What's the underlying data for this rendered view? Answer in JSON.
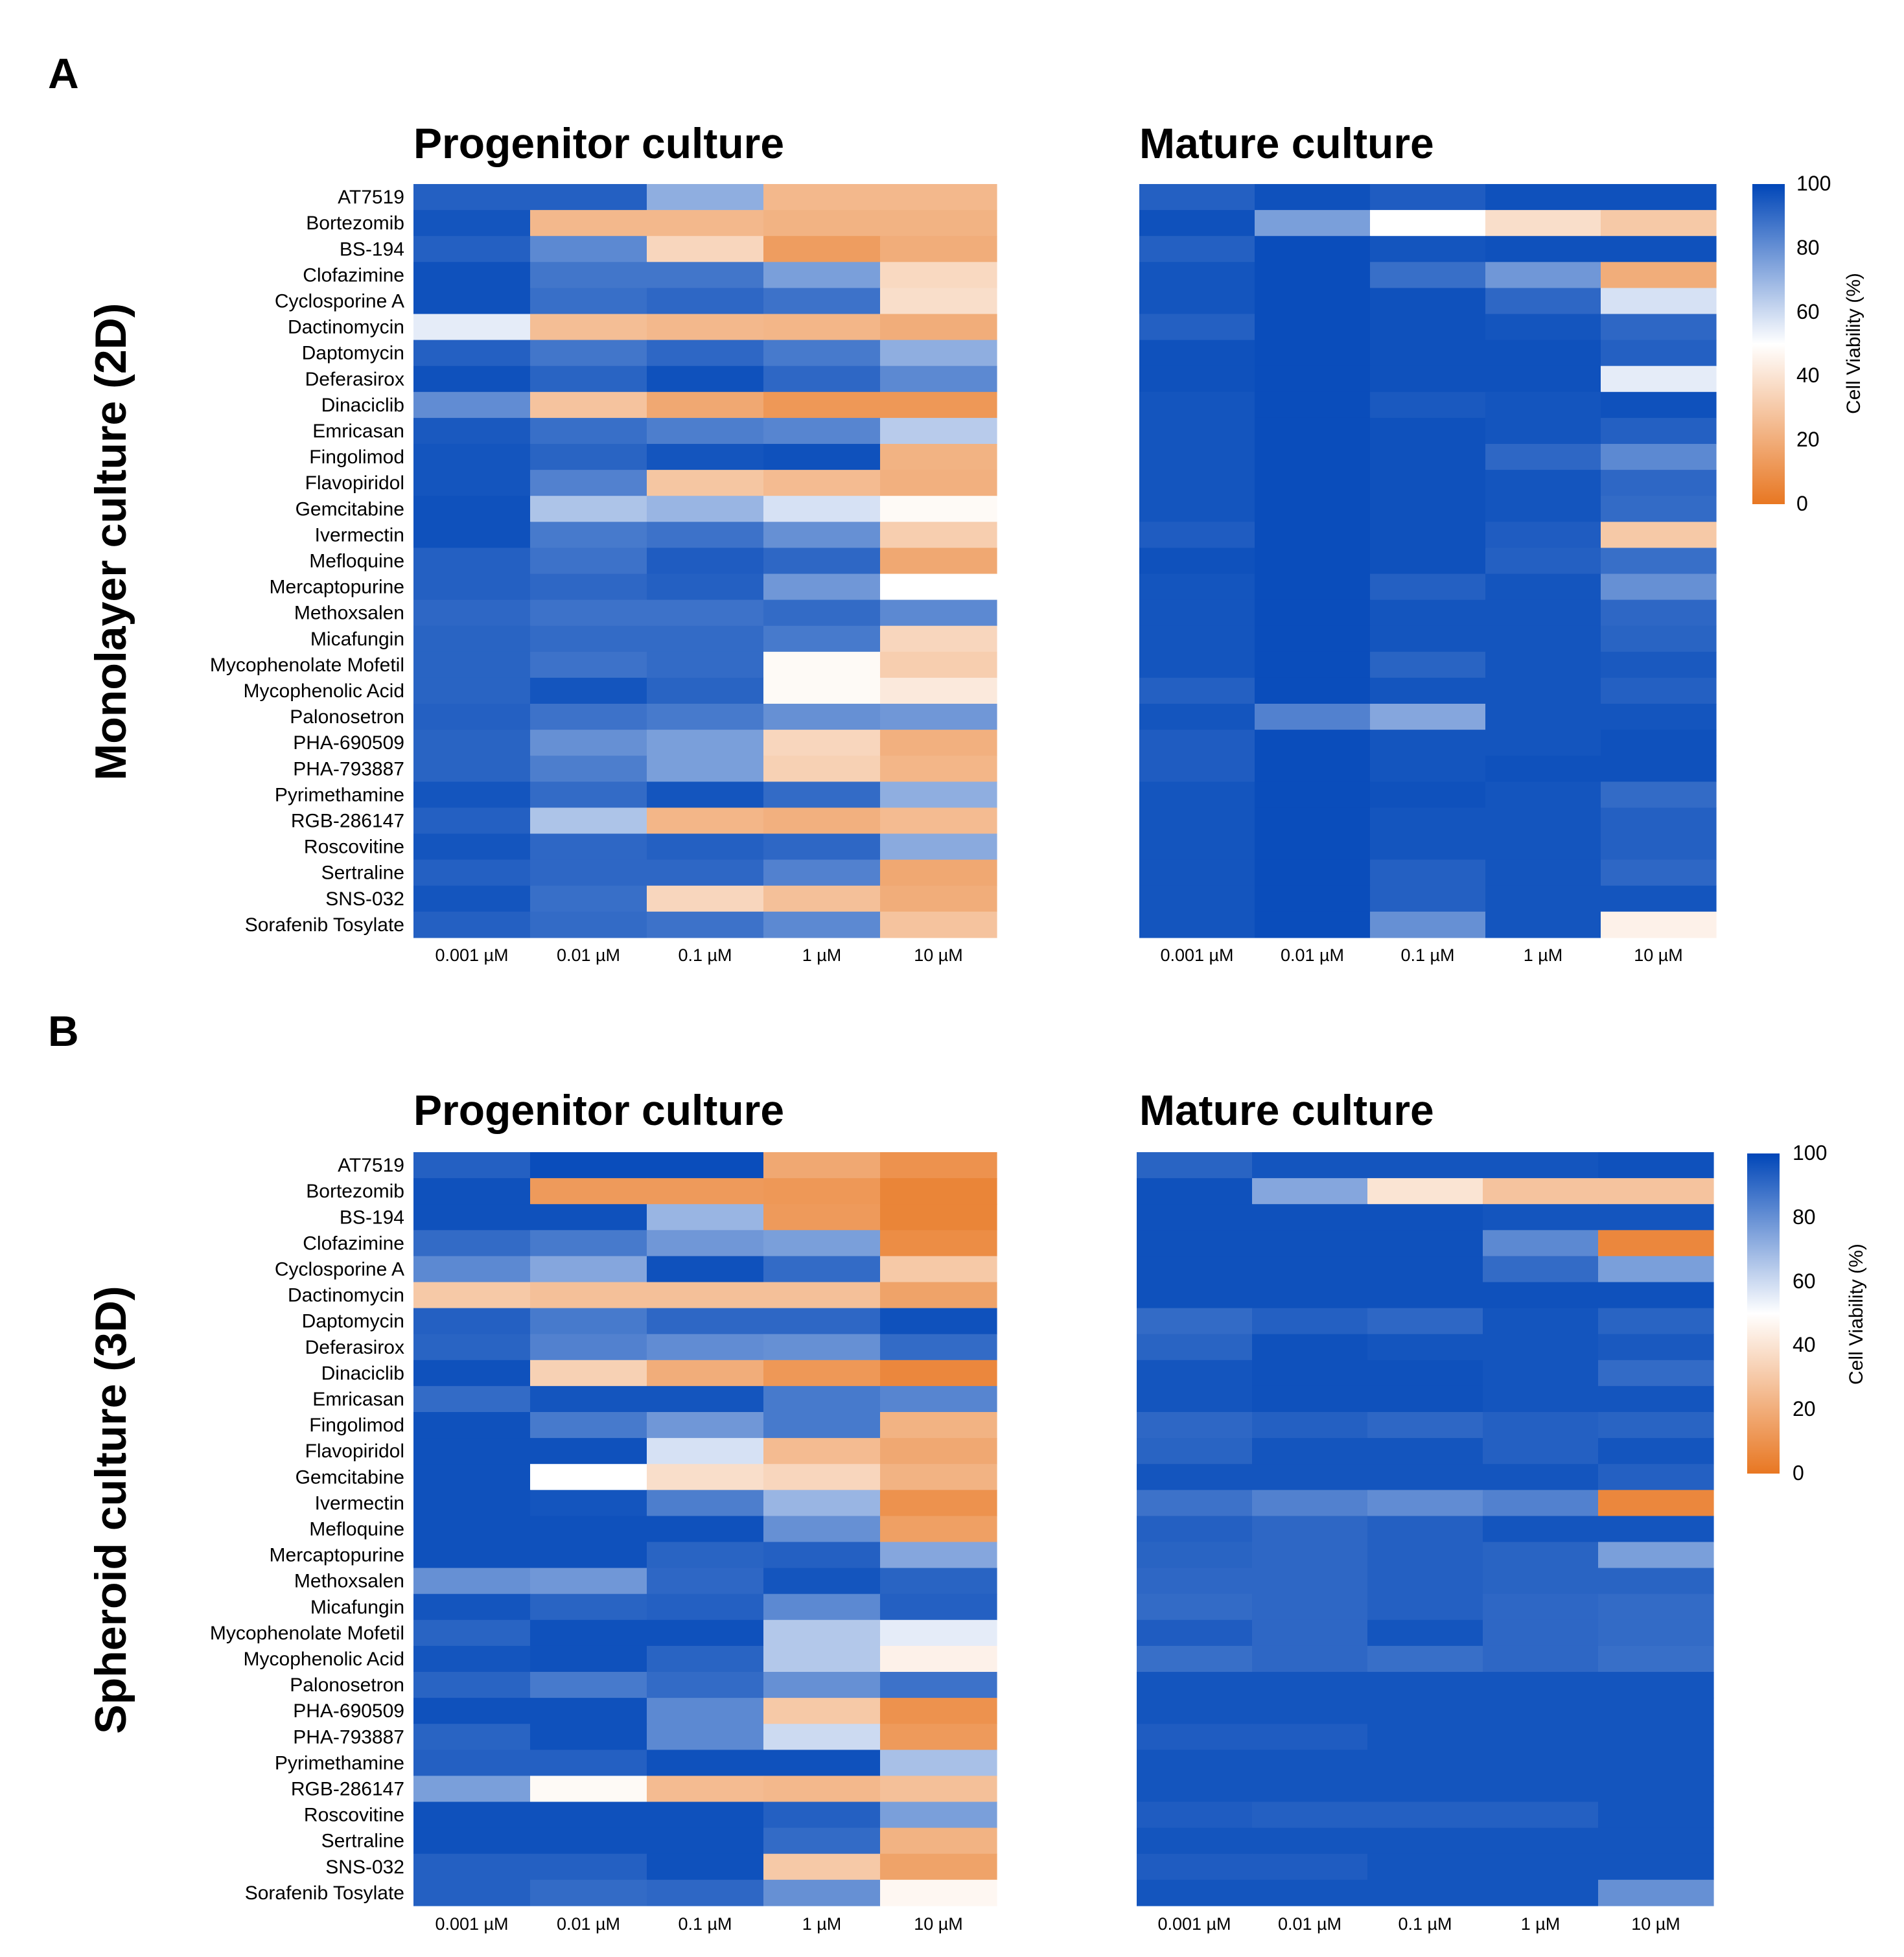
{
  "figure": {
    "panels": [
      {
        "letter": "A",
        "row_title": "Monolayer culture (2D)"
      },
      {
        "letter": "B",
        "row_title": "Spheroid culture (3D)"
      }
    ]
  },
  "chart_data": [
    {
      "type": "heatmap",
      "panel": "A",
      "title": "Progenitor culture",
      "row_title": "Monolayer culture (2D)",
      "colorbar_label": "Cell Viability (%)",
      "colorbar_ticks": [
        100,
        80,
        60,
        40,
        20,
        0
      ],
      "zlim": [
        0,
        100
      ],
      "colormap": {
        "low": "#e87722",
        "mid": "#ffffff",
        "high": "#0046b8"
      },
      "x": [
        "0.001 µM",
        "0.01 µM",
        "0.1 µM",
        "1 µM",
        "10 µM"
      ],
      "y": [
        "AT7519",
        "Bortezomib",
        "BS-194",
        "Clofazimine",
        "Cyclosporine A",
        "Dactinomycin",
        "Daptomycin",
        "Deferasirox",
        "Dinaciclib",
        "Emricasan",
        "Fingolimod",
        "Flavopiridol",
        "Gemcitabine",
        "Ivermectin",
        "Mefloquine",
        "Mercaptopurine",
        "Methoxsalen",
        "Micafungin",
        "Mycophenolate Mofetil",
        "Mycophenolic Acid",
        "Palonosetron",
        "PHA-690509",
        "PHA-793887",
        "Pyrimethamine",
        "RGB-286147",
        "Roscovitine",
        "Sertraline",
        "SNS-032",
        "Sorafenib Tosylate"
      ],
      "values": [
        [
          93,
          93,
          72,
          24,
          24
        ],
        [
          96,
          24,
          24,
          22,
          22
        ],
        [
          93,
          82,
          35,
          14,
          20
        ],
        [
          97,
          87,
          87,
          76,
          36
        ],
        [
          97,
          89,
          91,
          88,
          38
        ],
        [
          55,
          26,
          24,
          23,
          20
        ],
        [
          93,
          87,
          91,
          86,
          72
        ],
        [
          97,
          92,
          97,
          91,
          82
        ],
        [
          81,
          28,
          18,
          12,
          12
        ],
        [
          95,
          89,
          85,
          83,
          64
        ],
        [
          96,
          92,
          96,
          97,
          22
        ],
        [
          96,
          84,
          29,
          25,
          21
        ],
        [
          97,
          66,
          70,
          58,
          48
        ],
        [
          97,
          86,
          88,
          80,
          32
        ],
        [
          93,
          88,
          94,
          91,
          18
        ],
        [
          93,
          91,
          93,
          78,
          50
        ],
        [
          91,
          88,
          88,
          90,
          82
        ],
        [
          92,
          90,
          90,
          86,
          35
        ],
        [
          92,
          88,
          90,
          48,
          32
        ],
        [
          92,
          96,
          92,
          48,
          42
        ],
        [
          93,
          88,
          86,
          80,
          78
        ],
        [
          92,
          80,
          76,
          35,
          21
        ],
        [
          92,
          85,
          76,
          33,
          23
        ],
        [
          96,
          90,
          96,
          90,
          72
        ],
        [
          93,
          66,
          23,
          21,
          25
        ],
        [
          96,
          91,
          93,
          91,
          73
        ],
        [
          93,
          91,
          91,
          84,
          18
        ],
        [
          96,
          89,
          35,
          27,
          20
        ],
        [
          93,
          90,
          88,
          82,
          28
        ]
      ]
    },
    {
      "type": "heatmap",
      "panel": "A",
      "title": "Mature culture",
      "row_title": "Monolayer culture (2D)",
      "colorbar_label": "Cell Viability (%)",
      "colorbar_ticks": [
        100,
        80,
        60,
        40,
        20,
        0
      ],
      "zlim": [
        0,
        100
      ],
      "colormap": {
        "low": "#e87722",
        "mid": "#ffffff",
        "high": "#0046b8"
      },
      "x": [
        "0.001 µM",
        "0.01 µM",
        "0.1 µM",
        "1 µM",
        "10 µM"
      ],
      "y": [
        "AT7519",
        "Bortezomib",
        "BS-194",
        "Clofazimine",
        "Cyclosporine A",
        "Dactinomycin",
        "Daptomycin",
        "Deferasirox",
        "Dinaciclib",
        "Emricasan",
        "Fingolimod",
        "Flavopiridol",
        "Gemcitabine",
        "Ivermectin",
        "Mefloquine",
        "Mercaptopurine",
        "Methoxsalen",
        "Micafungin",
        "Mycophenolate Mofetil",
        "Mycophenolic Acid",
        "Palonosetron",
        "PHA-690509",
        "PHA-793887",
        "Pyrimethamine",
        "RGB-286147",
        "Roscovitine",
        "Sertraline",
        "SNS-032",
        "Sorafenib Tosylate"
      ],
      "values": [
        [
          93,
          97,
          94,
          97,
          97
        ],
        [
          97,
          76,
          50,
          38,
          30
        ],
        [
          93,
          98,
          96,
          97,
          97
        ],
        [
          96,
          98,
          89,
          78,
          20
        ],
        [
          96,
          98,
          97,
          91,
          58
        ],
        [
          93,
          98,
          97,
          96,
          91
        ],
        [
          97,
          98,
          97,
          97,
          93
        ],
        [
          97,
          98,
          97,
          97,
          55
        ],
        [
          96,
          98,
          95,
          96,
          97
        ],
        [
          96,
          98,
          97,
          96,
          93
        ],
        [
          96,
          98,
          97,
          91,
          82
        ],
        [
          96,
          98,
          97,
          96,
          91
        ],
        [
          96,
          98,
          97,
          96,
          90
        ],
        [
          94,
          98,
          97,
          94,
          30
        ],
        [
          97,
          98,
          97,
          93,
          89
        ],
        [
          96,
          98,
          93,
          96,
          80
        ],
        [
          96,
          98,
          96,
          96,
          91
        ],
        [
          96,
          98,
          96,
          96,
          92
        ],
        [
          96,
          98,
          92,
          96,
          95
        ],
        [
          93,
          98,
          96,
          96,
          93
        ],
        [
          96,
          84,
          74,
          96,
          96
        ],
        [
          94,
          98,
          96,
          96,
          97
        ],
        [
          94,
          98,
          96,
          97,
          97
        ],
        [
          96,
          98,
          97,
          96,
          90
        ],
        [
          96,
          98,
          96,
          96,
          93
        ],
        [
          96,
          98,
          96,
          96,
          93
        ],
        [
          96,
          98,
          93,
          96,
          91
        ],
        [
          96,
          98,
          93,
          96,
          96
        ],
        [
          96,
          98,
          80,
          96,
          45
        ]
      ]
    },
    {
      "type": "heatmap",
      "panel": "B",
      "title": "Progenitor culture",
      "row_title": "Spheroid culture (3D)",
      "colorbar_label": "Cell Viability (%)",
      "colorbar_ticks": [
        100,
        80,
        60,
        40,
        20,
        0
      ],
      "zlim": [
        0,
        100
      ],
      "colormap": {
        "low": "#e87722",
        "mid": "#ffffff",
        "high": "#0046b8"
      },
      "x": [
        "0.001 µM",
        "0.01 µM",
        "0.1 µM",
        "1 µM",
        "10 µM"
      ],
      "y": [
        "AT7519",
        "Bortezomib",
        "BS-194",
        "Clofazimine",
        "Cyclosporine A",
        "Dactinomycin",
        "Daptomycin",
        "Deferasirox",
        "Dinaciclib",
        "Emricasan",
        "Fingolimod",
        "Flavopiridol",
        "Gemcitabine",
        "Ivermectin",
        "Mefloquine",
        "Mercaptopurine",
        "Methoxsalen",
        "Micafungin",
        "Mycophenolate Mofetil",
        "Mycophenolic Acid",
        "Palonosetron",
        "PHA-690509",
        "PHA-793887",
        "Pyrimethamine",
        "RGB-286147",
        "Roscovitine",
        "Sertraline",
        "SNS-032",
        "Sorafenib Tosylate"
      ],
      "values": [
        [
          93,
          98,
          98,
          18,
          10
        ],
        [
          97,
          13,
          13,
          12,
          5
        ],
        [
          97,
          97,
          70,
          13,
          5
        ],
        [
          90,
          86,
          78,
          76,
          8
        ],
        [
          82,
          74,
          97,
          90,
          30
        ],
        [
          30,
          27,
          27,
          27,
          16
        ],
        [
          93,
          86,
          91,
          91,
          97
        ],
        [
          92,
          84,
          81,
          80,
          90
        ],
        [
          97,
          33,
          20,
          12,
          6
        ],
        [
          90,
          96,
          96,
          86,
          83
        ],
        [
          97,
          86,
          78,
          86,
          22
        ],
        [
          97,
          97,
          58,
          25,
          18
        ],
        [
          97,
          50,
          38,
          35,
          22
        ],
        [
          97,
          96,
          85,
          70,
          10
        ],
        [
          97,
          97,
          97,
          80,
          15
        ],
        [
          97,
          97,
          92,
          93,
          74
        ],
        [
          80,
          78,
          91,
          96,
          92
        ],
        [
          96,
          92,
          93,
          82,
          93
        ],
        [
          92,
          97,
          97,
          65,
          55
        ],
        [
          96,
          97,
          92,
          65,
          45
        ],
        [
          92,
          86,
          90,
          80,
          88
        ],
        [
          97,
          97,
          82,
          30,
          10
        ],
        [
          92,
          97,
          82,
          60,
          13
        ],
        [
          93,
          93,
          97,
          97,
          67
        ],
        [
          76,
          48,
          25,
          24,
          27
        ],
        [
          97,
          97,
          97,
          93,
          76
        ],
        [
          97,
          97,
          97,
          90,
          22
        ],
        [
          93,
          93,
          97,
          30,
          16
        ],
        [
          93,
          90,
          91,
          80,
          47
        ]
      ]
    },
    {
      "type": "heatmap",
      "panel": "B",
      "title": "Mature culture",
      "row_title": "Spheroid culture (3D)",
      "colorbar_label": "Cell Viability (%)",
      "colorbar_ticks": [
        100,
        80,
        60,
        40,
        20,
        0
      ],
      "zlim": [
        0,
        100
      ],
      "colormap": {
        "low": "#e87722",
        "mid": "#ffffff",
        "high": "#0046b8"
      },
      "x": [
        "0.001 µM",
        "0.01 µM",
        "0.1 µM",
        "1 µM",
        "10 µM"
      ],
      "y": [
        "AT7519",
        "Bortezomib",
        "BS-194",
        "Clofazimine",
        "Cyclosporine A",
        "Dactinomycin",
        "Daptomycin",
        "Deferasirox",
        "Dinaciclib",
        "Emricasan",
        "Fingolimod",
        "Flavopiridol",
        "Gemcitabine",
        "Ivermectin",
        "Mefloquine",
        "Mercaptopurine",
        "Methoxsalen",
        "Micafungin",
        "Mycophenolate Mofetil",
        "Mycophenolic Acid",
        "Palonosetron",
        "PHA-690509",
        "PHA-793887",
        "Pyrimethamine",
        "RGB-286147",
        "Roscovitine",
        "Sertraline",
        "SNS-032",
        "Sorafenib Tosylate"
      ],
      "values": [
        [
          92,
          96,
          96,
          96,
          97
        ],
        [
          97,
          74,
          40,
          28,
          28
        ],
        [
          97,
          97,
          97,
          96,
          96
        ],
        [
          97,
          97,
          97,
          82,
          6
        ],
        [
          97,
          97,
          97,
          90,
          76
        ],
        [
          97,
          97,
          97,
          97,
          97
        ],
        [
          90,
          93,
          91,
          96,
          92
        ],
        [
          92,
          97,
          96,
          96,
          95
        ],
        [
          96,
          97,
          97,
          96,
          90
        ],
        [
          96,
          97,
          97,
          96,
          96
        ],
        [
          91,
          93,
          91,
          93,
          92
        ],
        [
          92,
          96,
          96,
          93,
          96
        ],
        [
          96,
          96,
          96,
          96,
          93
        ],
        [
          88,
          84,
          81,
          84,
          6
        ],
        [
          93,
          91,
          93,
          96,
          96
        ],
        [
          92,
          91,
          93,
          92,
          76
        ],
        [
          91,
          91,
          93,
          92,
          92
        ],
        [
          90,
          91,
          93,
          91,
          90
        ],
        [
          94,
          91,
          96,
          91,
          90
        ],
        [
          89,
          91,
          89,
          91,
          89
        ],
        [
          96,
          96,
          96,
          96,
          96
        ],
        [
          96,
          96,
          96,
          96,
          96
        ],
        [
          94,
          94,
          96,
          96,
          96
        ],
        [
          96,
          96,
          96,
          96,
          96
        ],
        [
          96,
          96,
          96,
          96,
          96
        ],
        [
          94,
          93,
          93,
          93,
          96
        ],
        [
          96,
          96,
          96,
          96,
          96
        ],
        [
          94,
          94,
          96,
          96,
          96
        ],
        [
          96,
          96,
          96,
          96,
          80
        ]
      ]
    }
  ]
}
